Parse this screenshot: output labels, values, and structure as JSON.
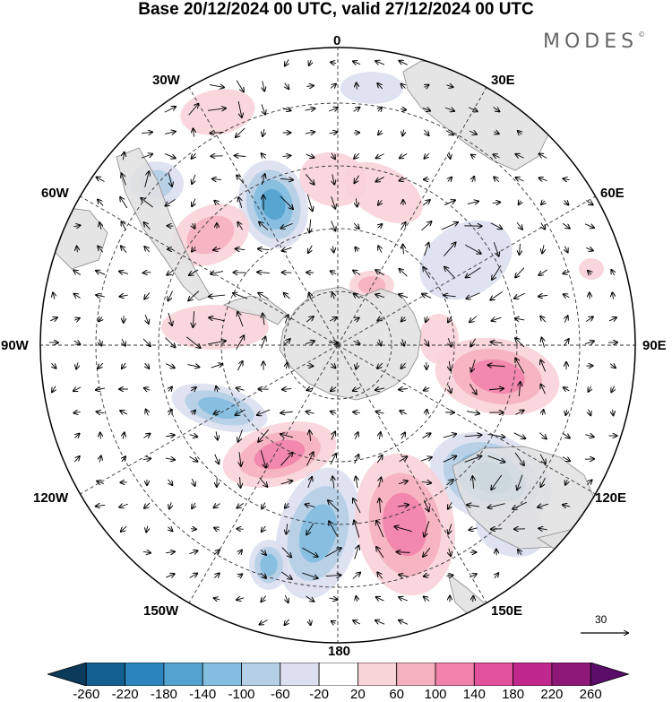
{
  "title": "Base 20/12/2024 00 UTC, valid 27/12/2024 00 UTC",
  "brand": "MODES",
  "brand_mark": "©",
  "longitude_labels": {
    "lon_0": "0",
    "lon_30e": "30E",
    "lon_60e": "60E",
    "lon_90e": "90E",
    "lon_120e": "120E",
    "lon_150e": "150E",
    "lon_180": "180",
    "lon_150w": "150W",
    "lon_120w": "120W",
    "lon_90w": "90W",
    "lon_60w": "60W",
    "lon_30w": "30W"
  },
  "reference_vector": {
    "value": "30"
  },
  "colorbar": {
    "labels": [
      "-260",
      "-220",
      "-180",
      "-140",
      "-100",
      "-60",
      "-20",
      "20",
      "60",
      "100",
      "140",
      "180",
      "220",
      "260"
    ],
    "colors": [
      "#0b3a5a",
      "#135f8f",
      "#2b84bc",
      "#52a3cf",
      "#83bde0",
      "#b5cfe6",
      "#dcdff0",
      "#ffffff",
      "#f8d3d8",
      "#f6b1c0",
      "#f183ab",
      "#e2519b",
      "#c1288d",
      "#8e1878",
      "#5a0e6a"
    ]
  },
  "map_colors": {
    "land": "#e1e1e1",
    "coast": "#888888",
    "grid": "#333333"
  }
}
